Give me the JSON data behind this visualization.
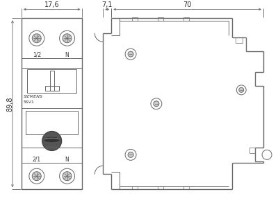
{
  "bg_color": "#ffffff",
  "line_color": "#666666",
  "dark_color": "#333333",
  "gray_color": "#999999",
  "lw": 0.7,
  "lw_thick": 1.0,
  "lw_dim": 0.6,
  "dim_176": "17,6",
  "dim_71": "7,1",
  "dim_70": "70",
  "dim_898": "89,8",
  "label_12": "1/2",
  "label_N_top": "N",
  "label_21": "2/1",
  "label_N_bot": "N",
  "label_siemens": "SIEMENS",
  "label_5sv1": "5SV1",
  "fontsize_label": 5.5,
  "fontsize_dim": 7
}
